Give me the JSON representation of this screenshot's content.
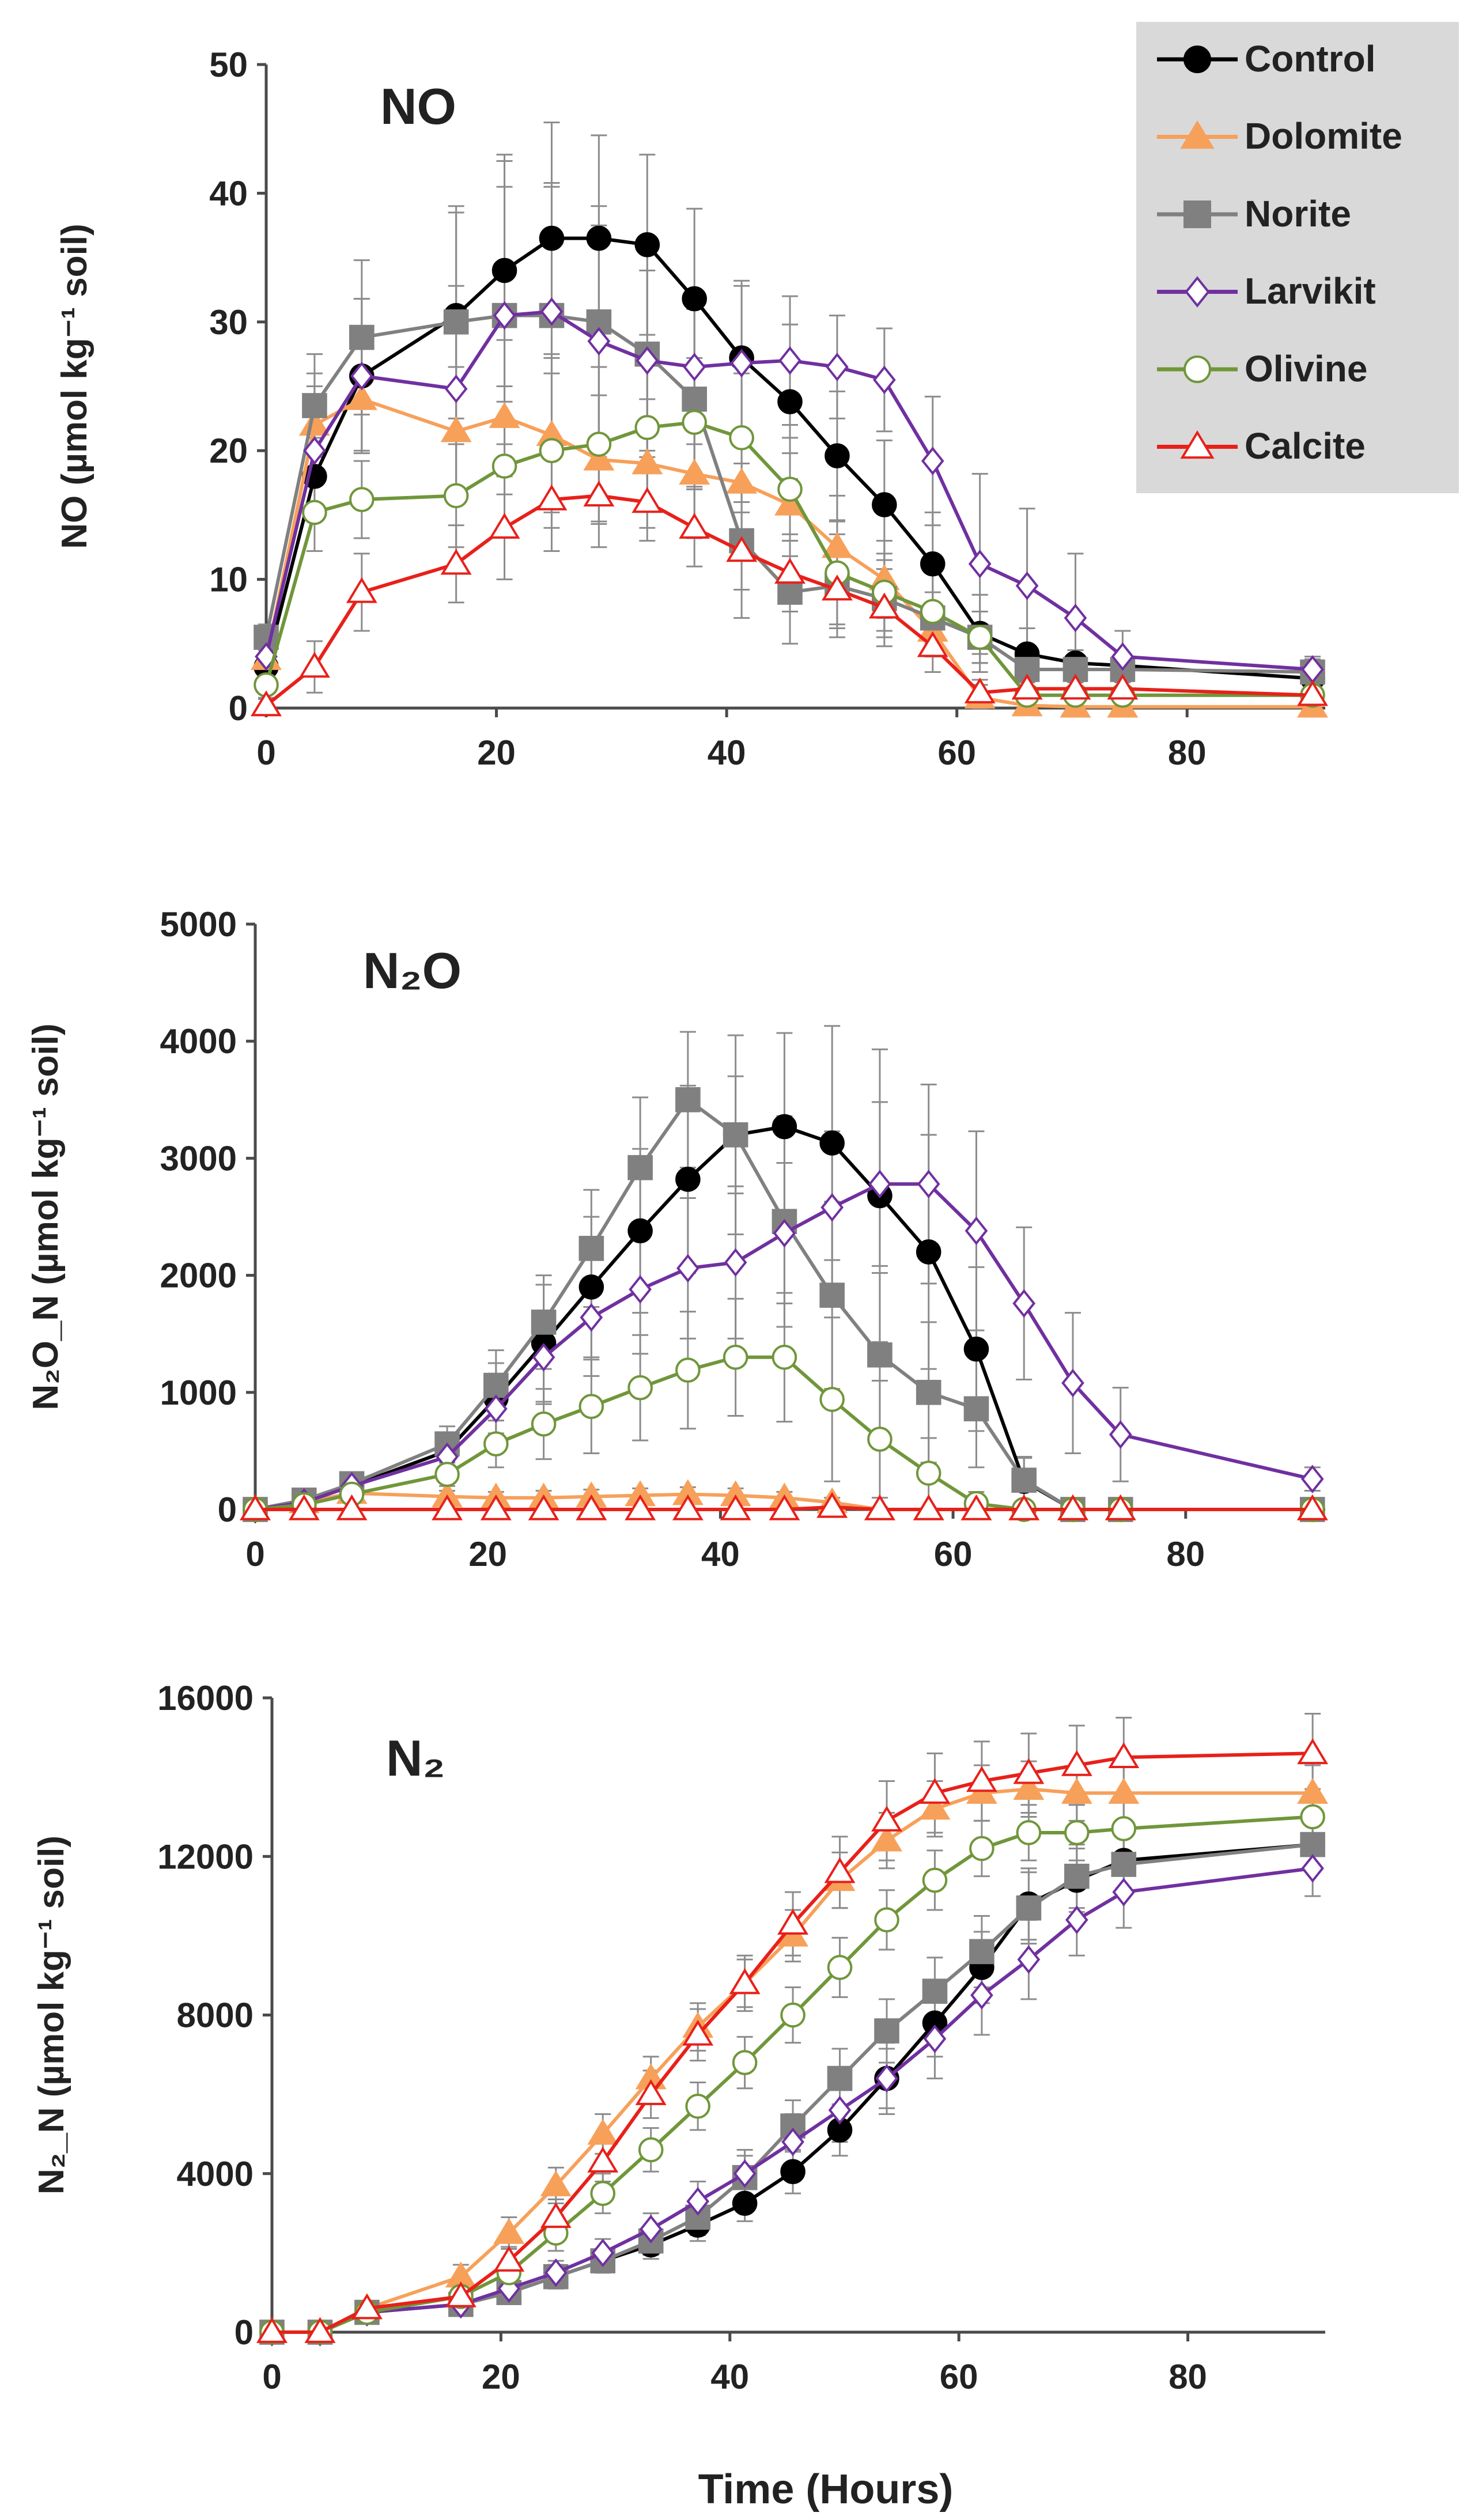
{
  "figure": {
    "xlabel": "Time (Hours)",
    "legend": [
      "Control",
      "Dolomite",
      "Norite",
      "Larvikit",
      "Olivine",
      "Calcite"
    ],
    "series_styles": {
      "Control": {
        "color": "#000000",
        "marker": "circle",
        "filled": true
      },
      "Dolomite": {
        "color": "#F7A05A",
        "marker": "triangle",
        "filled": true
      },
      "Norite": {
        "color": "#808080",
        "marker": "square",
        "filled": true
      },
      "Larvikit": {
        "color": "#7030A0",
        "marker": "diamond",
        "filled": false
      },
      "Olivine": {
        "color": "#70963A",
        "marker": "circle",
        "filled": false
      },
      "Calcite": {
        "color": "#E8201A",
        "marker": "triangle",
        "filled": false
      }
    }
  },
  "chart_data": [
    {
      "type": "line",
      "title": "NO",
      "ylabel": "NO (µmol kg⁻¹ soil)",
      "xlim": [
        0,
        92
      ],
      "ylim": [
        0,
        50
      ],
      "xticks": [
        "0",
        "20",
        "40",
        "60",
        "80"
      ],
      "yticks": [
        "0",
        "10",
        "20",
        "30",
        "40",
        "50"
      ],
      "x": [
        0,
        4.2,
        8.3,
        16.5,
        20.7,
        24.8,
        28.9,
        33.1,
        37.2,
        41.3,
        45.5,
        49.6,
        53.7,
        57.9,
        62,
        66.1,
        70.3,
        74.4,
        90.9
      ],
      "series": [
        {
          "name": "Control",
          "values": [
            3.2,
            18,
            25.8,
            30.5,
            34,
            36.5,
            36.5,
            36,
            31.8,
            27.2,
            23.8,
            19.6,
            15.8,
            11.2,
            5.8,
            4.2,
            3.5,
            3.3,
            2.3
          ],
          "errors": [
            1,
            3,
            6,
            8,
            9,
            9,
            8,
            7,
            7,
            6,
            6,
            5,
            5,
            4,
            3,
            2,
            1,
            1,
            1
          ]
        },
        {
          "name": "Dolomite",
          "values": [
            3.8,
            22,
            24,
            21.5,
            22.6,
            21.2,
            19.3,
            19,
            18.2,
            17.5,
            15.8,
            12.5,
            10,
            6,
            0.8,
            0.2,
            0.1,
            0.1,
            0.1
          ],
          "errors": [
            1,
            4,
            4,
            5,
            6,
            6,
            5,
            5,
            5,
            4,
            4,
            4,
            3,
            2,
            1,
            0.5,
            0.5,
            0.5,
            0.5
          ]
        },
        {
          "name": "Norite",
          "values": [
            5.5,
            23.5,
            28.8,
            30,
            30.5,
            30.5,
            30,
            27.5,
            24,
            13,
            9,
            9.5,
            8.5,
            7,
            5.5,
            3,
            3,
            3,
            2.8
          ],
          "errors": [
            1,
            4,
            6,
            9,
            12,
            10,
            9,
            8,
            7,
            6,
            4,
            4,
            3,
            2,
            2,
            1,
            1,
            1,
            1
          ]
        },
        {
          "name": "Larvikit",
          "values": [
            4,
            20,
            25.8,
            24.8,
            30.5,
            30.8,
            28.5,
            27,
            26.5,
            26.8,
            27,
            26.5,
            25.5,
            19.2,
            11.2,
            9.5,
            7,
            4,
            3
          ],
          "errors": [
            1,
            5,
            6,
            8,
            10,
            10,
            9,
            7,
            6,
            6,
            5,
            4,
            4,
            5,
            7,
            6,
            5,
            2,
            1
          ]
        },
        {
          "name": "Olivine",
          "values": [
            1.8,
            15.2,
            16.2,
            16.5,
            18.8,
            20,
            20.5,
            21.8,
            22.2,
            21,
            17,
            10.5,
            9,
            7.5,
            5.5,
            1,
            1,
            1,
            1
          ],
          "errors": [
            1,
            3,
            3,
            4,
            5,
            6,
            6,
            6,
            5,
            5,
            4,
            4,
            3,
            3,
            2,
            1,
            0.5,
            0.5,
            0.5
          ]
        },
        {
          "name": "Calcite",
          "values": [
            0.2,
            3.2,
            9,
            11.2,
            14,
            16.2,
            16.5,
            16,
            14,
            12.2,
            10.5,
            9.2,
            7.8,
            4.8,
            1.2,
            1.5,
            1.5,
            1.5,
            1
          ],
          "errors": [
            0.5,
            2,
            3,
            3,
            4,
            4,
            4,
            3,
            3,
            3,
            3,
            3,
            3,
            2,
            1,
            1,
            1,
            1,
            0.5
          ]
        }
      ]
    },
    {
      "type": "line",
      "title": "N₂O",
      "ylabel": "N₂O_N  (µmol kg⁻¹ soil)",
      "xlim": [
        0,
        92
      ],
      "ylim": [
        0,
        5000
      ],
      "xticks": [
        "0",
        "20",
        "40",
        "60",
        "80"
      ],
      "yticks": [
        "0",
        "1000",
        "2000",
        "3000",
        "4000",
        "5000"
      ],
      "x": [
        0,
        4.2,
        8.3,
        16.5,
        20.7,
        24.8,
        28.9,
        33.1,
        37.2,
        41.3,
        45.5,
        49.6,
        53.7,
        57.9,
        62,
        66.1,
        70.3,
        74.4,
        90.9
      ],
      "series": [
        {
          "name": "Control",
          "values": [
            0,
            80,
            200,
            500,
            950,
            1420,
            1900,
            2380,
            2820,
            3200,
            3270,
            3130,
            2680,
            2200,
            1370,
            240,
            0,
            0,
            0
          ],
          "errors": [
            10,
            50,
            80,
            150,
            300,
            500,
            600,
            700,
            800,
            850,
            800,
            1000,
            1250,
            1000,
            700,
            200,
            30,
            20,
            20
          ]
        },
        {
          "name": "Dolomite",
          "values": [
            0,
            60,
            140,
            110,
            100,
            100,
            110,
            120,
            130,
            120,
            100,
            60,
            0,
            0,
            0,
            0,
            0,
            0,
            0
          ],
          "errors": [
            10,
            40,
            60,
            50,
            50,
            60,
            60,
            60,
            60,
            60,
            50,
            40,
            20,
            10,
            10,
            10,
            10,
            10,
            10
          ]
        },
        {
          "name": "Norite",
          "values": [
            0,
            80,
            220,
            560,
            1060,
            1600,
            2230,
            2920,
            3500,
            3200,
            2460,
            1830,
            1320,
            1000,
            860,
            250,
            0,
            0,
            0
          ],
          "errors": [
            10,
            50,
            80,
            150,
            300,
            400,
            500,
            600,
            580,
            500,
            900,
            800,
            700,
            600,
            500,
            200,
            30,
            20,
            20
          ]
        },
        {
          "name": "Larvikit",
          "values": [
            0,
            60,
            200,
            450,
            860,
            1300,
            1640,
            1880,
            2060,
            2110,
            2360,
            2580,
            2780,
            2780,
            2380,
            1760,
            1080,
            640,
            260
          ],
          "errors": [
            10,
            50,
            80,
            150,
            300,
            400,
            500,
            550,
            600,
            650,
            600,
            650,
            700,
            850,
            850,
            650,
            600,
            400,
            100
          ]
        },
        {
          "name": "Olivine",
          "values": [
            0,
            40,
            130,
            300,
            560,
            730,
            880,
            1040,
            1190,
            1300,
            1300,
            940,
            600,
            310,
            50,
            0,
            0,
            0,
            0
          ],
          "errors": [
            10,
            40,
            60,
            100,
            200,
            300,
            400,
            450,
            500,
            500,
            550,
            700,
            500,
            300,
            100,
            20,
            10,
            10,
            10
          ]
        },
        {
          "name": "Calcite",
          "values": [
            0,
            0,
            0,
            0,
            0,
            0,
            0,
            0,
            0,
            0,
            0,
            20,
            0,
            0,
            0,
            0,
            0,
            0,
            0
          ],
          "errors": [
            10,
            10,
            10,
            10,
            10,
            10,
            10,
            10,
            10,
            10,
            10,
            20,
            10,
            10,
            10,
            10,
            10,
            10,
            10
          ]
        }
      ]
    },
    {
      "type": "line",
      "title": "N₂",
      "ylabel": "N₂_N (µmol kg⁻¹ soil)",
      "xlim": [
        0,
        92
      ],
      "ylim": [
        0,
        16000
      ],
      "xticks": [
        "0",
        "20",
        "40",
        "60",
        "80"
      ],
      "yticks": [
        "0",
        "4000",
        "8000",
        "12000",
        "16000"
      ],
      "xlabel": "Time (Hours)",
      "x": [
        0,
        4.2,
        8.3,
        16.5,
        20.7,
        24.8,
        28.9,
        33.1,
        37.2,
        41.3,
        45.5,
        49.6,
        53.7,
        57.9,
        62,
        66.1,
        70.3,
        74.4,
        90.9
      ],
      "series": [
        {
          "name": "Control",
          "values": [
            0,
            0,
            500,
            700,
            1000,
            1400,
            1800,
            2200,
            2700,
            3250,
            4050,
            5100,
            6400,
            7800,
            9200,
            10800,
            11400,
            11900,
            12300
          ],
          "errors": [
            20,
            20,
            150,
            200,
            250,
            300,
            300,
            350,
            400,
            450,
            550,
            650,
            750,
            850,
            900,
            900,
            800,
            700,
            600
          ]
        },
        {
          "name": "Dolomite",
          "values": [
            0,
            0,
            600,
            1400,
            2500,
            3700,
            5000,
            6400,
            7700,
            8800,
            10000,
            11400,
            12400,
            13200,
            13600,
            13700,
            13600,
            13600,
            13600
          ],
          "errors": [
            20,
            20,
            150,
            300,
            400,
            450,
            500,
            550,
            600,
            600,
            650,
            700,
            700,
            700,
            700,
            700,
            700,
            700,
            700
          ]
        },
        {
          "name": "Norite",
          "values": [
            0,
            0,
            500,
            700,
            1000,
            1400,
            1800,
            2300,
            2900,
            3900,
            5200,
            6400,
            7600,
            8600,
            9600,
            10700,
            11500,
            11800,
            12300
          ],
          "errors": [
            20,
            20,
            150,
            200,
            250,
            300,
            300,
            350,
            450,
            550,
            650,
            750,
            800,
            850,
            900,
            900,
            800,
            700,
            600
          ]
        },
        {
          "name": "Larvikit",
          "values": [
            0,
            0,
            500,
            700,
            1100,
            1500,
            2000,
            2600,
            3300,
            4000,
            4800,
            5600,
            6400,
            7400,
            8500,
            9400,
            10400,
            11100,
            11700
          ],
          "errors": [
            20,
            20,
            150,
            200,
            250,
            300,
            350,
            400,
            500,
            600,
            700,
            800,
            900,
            1000,
            1000,
            1000,
            900,
            900,
            700
          ]
        },
        {
          "name": "Olivine",
          "values": [
            0,
            0,
            500,
            900,
            1500,
            2500,
            3500,
            4600,
            5700,
            6800,
            8000,
            9200,
            10400,
            11400,
            12200,
            12600,
            12600,
            12700,
            13000
          ],
          "errors": [
            20,
            20,
            150,
            250,
            350,
            450,
            500,
            550,
            600,
            650,
            700,
            750,
            750,
            750,
            700,
            700,
            700,
            700,
            700
          ]
        },
        {
          "name": "Calcite",
          "values": [
            0,
            0,
            600,
            900,
            1800,
            2900,
            4300,
            6000,
            7500,
            8800,
            10300,
            11600,
            12900,
            13600,
            13900,
            14100,
            14300,
            14500,
            14600
          ],
          "errors": [
            20,
            20,
            150,
            250,
            350,
            450,
            500,
            600,
            650,
            700,
            800,
            900,
            1000,
            1000,
            1000,
            1000,
            1000,
            1000,
            1000
          ]
        }
      ]
    }
  ]
}
